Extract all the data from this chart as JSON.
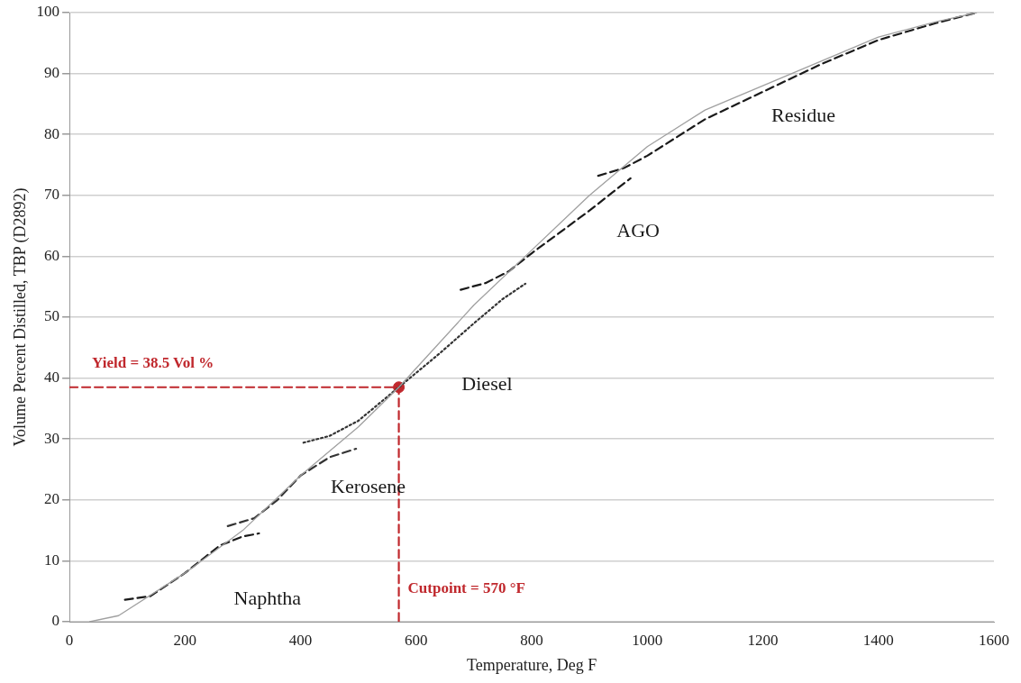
{
  "chart_data": {
    "type": "line",
    "xlabel": "Temperature, Deg F",
    "ylabel": "Volume Percent Distilled, TBP (D2892)",
    "xlim": [
      0,
      1600
    ],
    "xticks": [
      0,
      200,
      400,
      600,
      800,
      1000,
      1200,
      1400,
      1600
    ],
    "ylim": [
      0,
      100
    ],
    "yticks": [
      0,
      10,
      20,
      30,
      40,
      50,
      60,
      70,
      80,
      90,
      100
    ],
    "grid": "y",
    "marker": "none",
    "series": [
      {
        "color": "#a0a0a0",
        "line_style": "solid",
        "x": [
          35,
          85,
          200,
          300,
          400,
          500,
          570,
          700,
          800,
          900,
          1000,
          1100,
          1200,
          1300,
          1400,
          1500,
          1570
        ],
        "values": [
          0,
          1,
          8,
          15,
          24,
          32,
          38.5,
          52,
          61,
          70,
          78,
          84,
          88,
          92,
          96,
          98.5,
          100
        ]
      },
      {
        "name": "Naphtha",
        "color": "#1a1a1a",
        "line_style": "dashed",
        "x": [
          96,
          140,
          200,
          260,
          300,
          328
        ],
        "values": [
          3.6,
          4.2,
          8,
          12.5,
          14,
          14.5
        ]
      },
      {
        "name": "Kerosene",
        "color": "#333333",
        "line_style": "dashed",
        "x": [
          274,
          320,
          360,
          400,
          450,
          496
        ],
        "values": [
          15.7,
          17,
          20,
          24,
          27,
          28.4
        ]
      },
      {
        "name": "Diesel",
        "color": "#333333",
        "line_style": "dotted",
        "x": [
          405,
          450,
          500,
          570,
          640,
          700,
          750,
          789
        ],
        "values": [
          29.4,
          30.5,
          33,
          38.5,
          44,
          49,
          53,
          55.5
        ]
      },
      {
        "name": "AGO",
        "color": "#1a1a1a",
        "line_style": "dashed",
        "x": [
          677,
          720,
          760,
          800,
          850,
          900,
          940,
          971
        ],
        "values": [
          54.5,
          55.6,
          57.5,
          60.5,
          64,
          67.5,
          70.5,
          72.8
        ]
      },
      {
        "name": "Residue",
        "color": "#1a1a1a",
        "line_style": "dashed",
        "x": [
          915,
          960,
          1000,
          1100,
          1200,
          1300,
          1400,
          1500,
          1570
        ],
        "values": [
          73.2,
          74.5,
          76.5,
          82.5,
          87,
          91.5,
          95.5,
          98.3,
          100
        ]
      },
      {
        "color": "#c0282d",
        "line_style": "dashed",
        "x": [
          0,
          570,
          570
        ],
        "values": [
          38.5,
          38.5,
          0
        ]
      },
      {
        "type": "scatter",
        "color": "#c0282d",
        "marker": "circle",
        "x": [
          570
        ],
        "values": [
          38.5
        ]
      }
    ],
    "annotations": [
      "Yield = 38.5 Vol %",
      "Cutpoint = 570 °F"
    ]
  }
}
